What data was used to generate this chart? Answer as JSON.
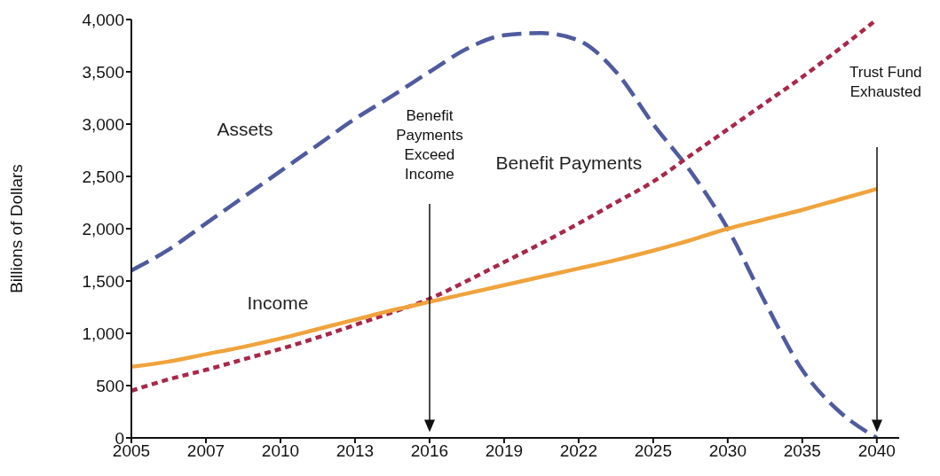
{
  "chart_data": {
    "type": "line",
    "ylabel": "Billions of Dollars",
    "categories": [
      "2005",
      null,
      "2007",
      null,
      "2010",
      null,
      "2013",
      null,
      "2016",
      null,
      "2019",
      null,
      "2022",
      null,
      "2025",
      null,
      "2030",
      null,
      "2035",
      null,
      "2040"
    ],
    "series": [
      {
        "name": "Assets",
        "color": "#4f5b9e",
        "line_style": "dashed",
        "values": [
          1600,
          1800,
          2050,
          2300,
          2550,
          2800,
          3050,
          3270,
          3500,
          3720,
          3850,
          3870,
          3800,
          3500,
          3000,
          2550,
          2000,
          1300,
          650,
          250,
          0
        ]
      },
      {
        "name": "Benefit Payments",
        "color": "#a8284a",
        "line_style": "dotted",
        "values": [
          450,
          560,
          650,
          750,
          850,
          960,
          1080,
          1200,
          1330,
          1500,
          1680,
          1860,
          2050,
          2250,
          2450,
          2700,
          2950,
          3200,
          3450,
          3720,
          4000
        ]
      },
      {
        "name": "Income",
        "color": "#f0a33c",
        "line_style": "solid",
        "values": [
          680,
          730,
          800,
          870,
          950,
          1040,
          1130,
          1220,
          1300,
          1380,
          1460,
          1540,
          1620,
          1700,
          1790,
          1890,
          2000,
          2090,
          2180,
          2280,
          2380
        ]
      }
    ],
    "ylim": [
      0,
      4000
    ],
    "yticks": [
      0,
      500,
      {
        "value": 1000,
        "label": "1,000"
      },
      {
        "value": 1500,
        "label": "1,500"
      },
      {
        "value": 2000,
        "label": "2,000"
      },
      {
        "value": 2500,
        "label": "2,500"
      },
      {
        "value": 3000,
        "label": "3,000"
      },
      {
        "value": 3500,
        "label": "3,500"
      },
      {
        "value": 4000,
        "label": "4,000"
      }
    ],
    "annotations": [
      "Benefit Payments Exceed Income",
      "Trust Fund Exhausted"
    ]
  }
}
